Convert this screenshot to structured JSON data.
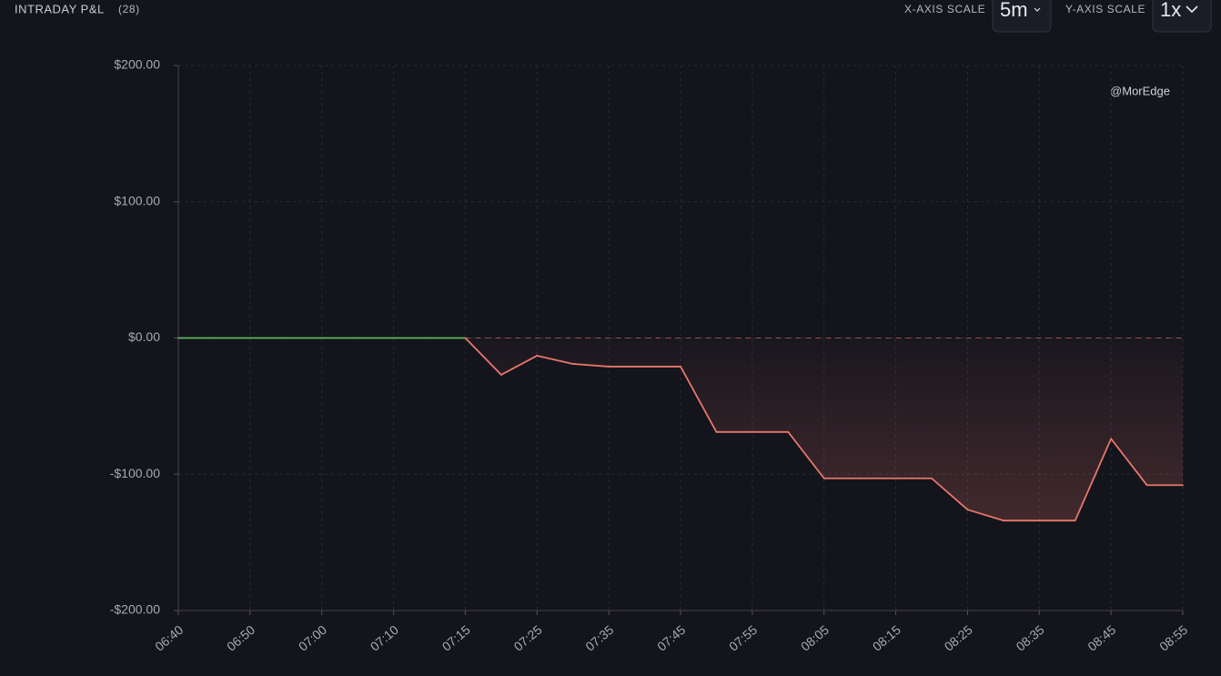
{
  "header": {
    "title": "INTRADAY P&L",
    "count": "(28)",
    "x_scale_label": "X-AXIS SCALE",
    "x_scale_value": "5m",
    "y_scale_label": "Y-AXIS SCALE",
    "y_scale_value": "1x"
  },
  "chart_data": {
    "type": "line",
    "annotation": "@MorEdge",
    "categories": [
      "06:40",
      null,
      "06:50",
      null,
      "07:00",
      null,
      "07:10",
      null,
      "07:15",
      null,
      "07:25",
      null,
      "07:35",
      null,
      "07:45",
      null,
      "07:55",
      null,
      "08:05",
      null,
      "08:15",
      null,
      "08:25",
      null,
      "08:35",
      null,
      "08:45",
      null,
      "08:55"
    ],
    "values": [
      0,
      0,
      0,
      0,
      0,
      0,
      0,
      0,
      0,
      -27,
      -13,
      -19,
      -21,
      -21,
      -21,
      -69,
      -69,
      -69,
      -103,
      -103,
      -103,
      -103,
      -126,
      -134,
      -134,
      -134,
      -74,
      -108,
      -108
    ],
    "positive_color": "#5cb85c",
    "negative_color": "#e8776b",
    "ylim": [
      -200,
      200
    ],
    "yticks": [
      {
        "value": -200,
        "label": "-$200.00"
      },
      {
        "value": -100,
        "label": "-$100.00"
      },
      {
        "value": 0,
        "label": "$0.00"
      },
      {
        "value": 100,
        "label": "$100.00"
      },
      {
        "value": 200,
        "label": "$200.00"
      }
    ],
    "grid": true
  }
}
